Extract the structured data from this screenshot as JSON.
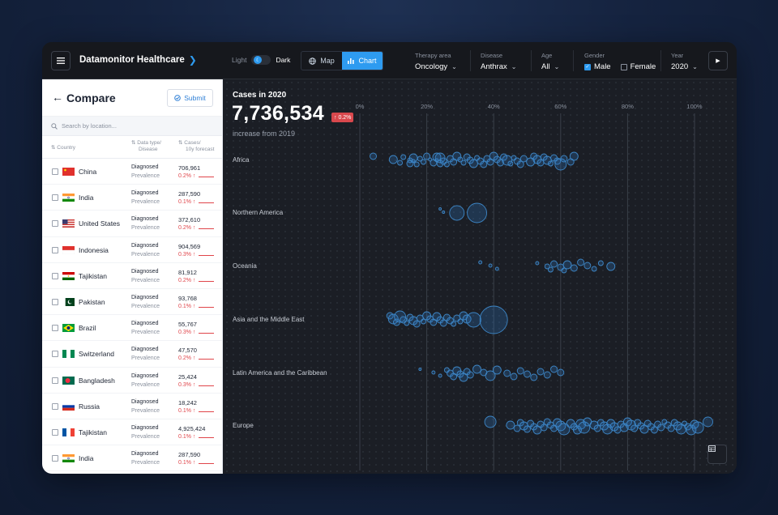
{
  "header": {
    "brand": "Datamonitor Healthcare",
    "theme": {
      "light_label": "Light",
      "dark_label": "Dark"
    },
    "view_toggle": {
      "map_label": "Map",
      "chart_label": "Chart",
      "active": "Chart"
    },
    "filters": {
      "therapy_area": {
        "label": "Therapy area",
        "value": "Oncology"
      },
      "disease": {
        "label": "Disease",
        "value": "Anthrax"
      },
      "age": {
        "label": "Age",
        "value": "All"
      },
      "gender": {
        "label": "Gender",
        "male_label": "Male",
        "female_label": "Female",
        "male_checked": true,
        "female_checked": false
      },
      "year": {
        "label": "Year",
        "value": "2020"
      }
    }
  },
  "sidebar": {
    "title": "Compare",
    "submit_label": "Submit",
    "search_placeholder": "Search by location...",
    "columns": {
      "country": "Country",
      "data_type_1": "Data type/",
      "data_type_2": "Disease",
      "cases_1": "Cases/",
      "cases_2": "10y forecast"
    },
    "rows": [
      {
        "country": "China",
        "flag": "cn",
        "data_type": "Diagnosed",
        "disease": "Prevalence",
        "cases": "706,961",
        "change": "0.2% ↑"
      },
      {
        "country": "India",
        "flag": "in",
        "data_type": "Diagnosed",
        "disease": "Prevalence",
        "cases": "287,590",
        "change": "0.1% ↑"
      },
      {
        "country": "United States",
        "flag": "us",
        "data_type": "Diagnosed",
        "disease": "Prevalence",
        "cases": "372,610",
        "change": "0.2% ↑"
      },
      {
        "country": "Indonesia",
        "flag": "id",
        "data_type": "Diagnosed",
        "disease": "Prevalence",
        "cases": "904,569",
        "change": "0.3% ↑"
      },
      {
        "country": "Tajikistan",
        "flag": "tj",
        "data_type": "Diagnosed",
        "disease": "Prevalence",
        "cases": "81,912",
        "change": "0.2% ↑"
      },
      {
        "country": "Pakistan",
        "flag": "pk",
        "data_type": "Diagnosed",
        "disease": "Prevalence",
        "cases": "93,768",
        "change": "0.1% ↑"
      },
      {
        "country": "Brazil",
        "flag": "br",
        "data_type": "Diagnosed",
        "disease": "Prevalence",
        "cases": "55,767",
        "change": "0.3% ↑"
      },
      {
        "country": "Switzerland",
        "flag": "ng",
        "data_type": "Diagnosed",
        "disease": "Prevalence",
        "cases": "47,570",
        "change": "0.2% ↑"
      },
      {
        "country": "Bangladesh",
        "flag": "bd",
        "data_type": "Diagnosed",
        "disease": "Prevalence",
        "cases": "25,424",
        "change": "0.3% ↑"
      },
      {
        "country": "Russia",
        "flag": "ru",
        "data_type": "Diagnosed",
        "disease": "Prevalence",
        "cases": "18,242",
        "change": "0.1% ↑"
      },
      {
        "country": "Tajikistan",
        "flag": "fr",
        "data_type": "Diagnosed",
        "disease": "Prevalence",
        "cases": "4,925,424",
        "change": "0.1% ↑"
      },
      {
        "country": "India",
        "flag": "in",
        "data_type": "Diagnosed",
        "disease": "Prevalence",
        "cases": "287,590",
        "change": "0.1% ↑"
      }
    ]
  },
  "chart": {
    "title": "Cases in 2020",
    "total": "7,736,534",
    "badge": "↑ 0.2%",
    "subtitle": "increase from 2019",
    "axis_ticks": [
      "0%",
      "20%",
      "40%",
      "60%",
      "80%",
      "100%"
    ],
    "regions": [
      {
        "name": "Africa",
        "bubbles": [
          [
            4,
            4
          ],
          [
            10,
            5
          ],
          [
            12,
            3
          ],
          [
            13,
            3
          ],
          [
            15,
            3
          ],
          [
            15,
            4
          ],
          [
            16,
            5
          ],
          [
            16,
            2
          ],
          [
            17,
            3
          ],
          [
            18,
            3
          ],
          [
            19,
            3
          ],
          [
            20,
            4
          ],
          [
            21,
            2
          ],
          [
            22,
            4
          ],
          [
            23,
            5
          ],
          [
            23,
            2
          ],
          [
            24,
            4
          ],
          [
            24,
            6
          ],
          [
            25,
            4
          ],
          [
            26,
            3
          ],
          [
            27,
            4
          ],
          [
            28,
            4
          ],
          [
            29,
            5
          ],
          [
            30,
            3
          ],
          [
            31,
            3
          ],
          [
            32,
            4
          ],
          [
            33,
            4
          ],
          [
            34,
            5
          ],
          [
            35,
            3
          ],
          [
            36,
            4
          ],
          [
            37,
            4
          ],
          [
            38,
            4
          ],
          [
            39,
            4
          ],
          [
            40,
            5
          ],
          [
            41,
            4
          ],
          [
            42,
            4
          ],
          [
            43,
            4
          ],
          [
            44,
            6
          ],
          [
            45,
            3
          ],
          [
            46,
            3
          ],
          [
            47,
            4
          ],
          [
            48,
            4
          ],
          [
            49,
            4
          ],
          [
            51,
            5
          ],
          [
            52,
            4
          ],
          [
            53,
            5
          ],
          [
            54,
            4
          ],
          [
            55,
            4
          ],
          [
            56,
            5
          ],
          [
            57,
            3
          ],
          [
            58,
            4
          ],
          [
            59,
            4
          ],
          [
            60,
            7
          ],
          [
            61,
            4
          ],
          [
            63,
            4
          ],
          [
            64,
            5
          ]
        ]
      },
      {
        "name": "Northern America",
        "bubbles": [
          [
            24,
            1.5
          ],
          [
            25,
            1.5
          ],
          [
            29,
            9
          ],
          [
            35,
            12
          ]
        ]
      },
      {
        "name": "Oceania",
        "bubbles": [
          [
            36,
            2
          ],
          [
            39,
            2
          ],
          [
            41,
            2
          ],
          [
            53,
            2
          ],
          [
            56,
            3
          ],
          [
            57,
            3
          ],
          [
            58,
            4
          ],
          [
            60,
            4
          ],
          [
            61,
            3
          ],
          [
            62,
            5
          ],
          [
            64,
            4
          ],
          [
            66,
            4
          ],
          [
            68,
            4
          ],
          [
            70,
            3
          ],
          [
            72,
            3
          ],
          [
            75,
            5
          ]
        ]
      },
      {
        "name": "Asia and the Middle East",
        "bubbles": [
          [
            9,
            4
          ],
          [
            10,
            6
          ],
          [
            11,
            4
          ],
          [
            12,
            7
          ],
          [
            13,
            4
          ],
          [
            14,
            3
          ],
          [
            15,
            4
          ],
          [
            16,
            5
          ],
          [
            17,
            4
          ],
          [
            18,
            4
          ],
          [
            19,
            3
          ],
          [
            20,
            5
          ],
          [
            21,
            4
          ],
          [
            22,
            4
          ],
          [
            23,
            5
          ],
          [
            24,
            4
          ],
          [
            25,
            4
          ],
          [
            26,
            4
          ],
          [
            27,
            4
          ],
          [
            28,
            3
          ],
          [
            29,
            4
          ],
          [
            30,
            3
          ],
          [
            31,
            5
          ],
          [
            32,
            5
          ],
          [
            34,
            9
          ],
          [
            40,
            17
          ]
        ]
      },
      {
        "name": "Latin America and the Caribbean",
        "bubbles": [
          [
            18,
            1.5
          ],
          [
            22,
            2
          ],
          [
            24,
            2
          ],
          [
            26,
            3
          ],
          [
            27,
            4
          ],
          [
            28,
            4
          ],
          [
            29,
            5
          ],
          [
            30,
            4
          ],
          [
            31,
            5
          ],
          [
            32,
            4
          ],
          [
            33,
            4
          ],
          [
            35,
            5
          ],
          [
            37,
            4
          ],
          [
            39,
            6
          ],
          [
            41,
            5
          ],
          [
            44,
            4
          ],
          [
            46,
            4
          ],
          [
            48,
            4
          ],
          [
            50,
            4
          ],
          [
            52,
            4
          ],
          [
            54,
            4
          ],
          [
            56,
            4
          ],
          [
            58,
            4
          ],
          [
            60,
            4
          ]
        ]
      },
      {
        "name": "Europe",
        "bubbles": [
          [
            39,
            7
          ],
          [
            45,
            5
          ],
          [
            47,
            4
          ],
          [
            48,
            4
          ],
          [
            49,
            5
          ],
          [
            50,
            4
          ],
          [
            51,
            4
          ],
          [
            52,
            4
          ],
          [
            53,
            5
          ],
          [
            54,
            4
          ],
          [
            55,
            4
          ],
          [
            56,
            4
          ],
          [
            57,
            4
          ],
          [
            58,
            4
          ],
          [
            59,
            5
          ],
          [
            60,
            6
          ],
          [
            61,
            7
          ],
          [
            63,
            5
          ],
          [
            64,
            4
          ],
          [
            65,
            5
          ],
          [
            66,
            6
          ],
          [
            67,
            7
          ],
          [
            68,
            5
          ],
          [
            70,
            5
          ],
          [
            71,
            4
          ],
          [
            72,
            4
          ],
          [
            73,
            5
          ],
          [
            74,
            6
          ],
          [
            75,
            5
          ],
          [
            76,
            5
          ],
          [
            77,
            4
          ],
          [
            78,
            4
          ],
          [
            79,
            5
          ],
          [
            80,
            5
          ],
          [
            81,
            6
          ],
          [
            82,
            4
          ],
          [
            83,
            4
          ],
          [
            84,
            4
          ],
          [
            85,
            5
          ],
          [
            86,
            4
          ],
          [
            87,
            4
          ],
          [
            88,
            4
          ],
          [
            89,
            4
          ],
          [
            90,
            4
          ],
          [
            91,
            3
          ],
          [
            92,
            4
          ],
          [
            93,
            4
          ],
          [
            94,
            4
          ],
          [
            95,
            5
          ],
          [
            96,
            6
          ],
          [
            97,
            3
          ],
          [
            98,
            4
          ],
          [
            99,
            6
          ],
          [
            100,
            5
          ],
          [
            101,
            7
          ],
          [
            104,
            6
          ]
        ]
      }
    ]
  }
}
